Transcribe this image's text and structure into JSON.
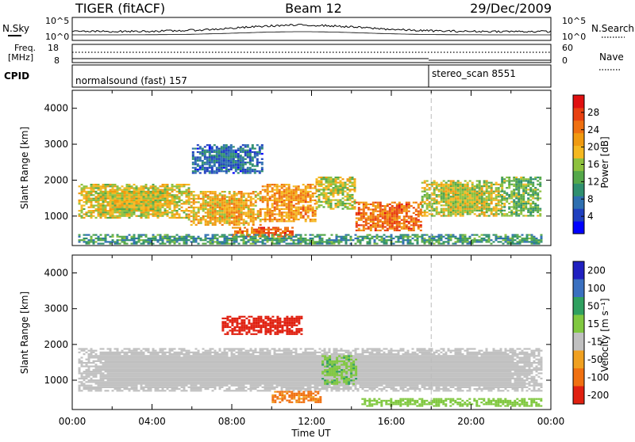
{
  "header": {
    "title_left": "TIGER (fitACF)",
    "title_center": "Beam 12",
    "title_right": "29/Dec/2009"
  },
  "status_panel": {
    "nsky_label": "N.Sky",
    "nsearch_label": "N.Search",
    "noise_left_top": "10^5",
    "noise_left_bottom": "10^0",
    "noise_right_top": "10^5",
    "noise_right_bottom": "10^0",
    "freq_label_line1": "Freq.",
    "freq_label_line2": "[MHz]",
    "freq_top": "18",
    "freq_bottom": "8",
    "nave_label": "Nave",
    "nave_top": "60",
    "nave_bottom": "0",
    "cpid_label": "CPID",
    "cpid_program_1": "normalsound (fast) 157",
    "cpid_program_2": "stereo_scan 8551"
  },
  "chart_data": [
    {
      "type": "heatmap",
      "name": "power",
      "xlabel": "",
      "ylabel": "Slant Range [km]",
      "xlim": [
        0,
        24
      ],
      "ylim": [
        180,
        4500
      ],
      "yticks": [
        1000,
        2000,
        3000,
        4000
      ],
      "colorbar": {
        "label": "Power [dB]",
        "min": 0,
        "max": 32,
        "ticks": [
          4,
          8,
          12,
          16,
          20,
          24,
          28
        ],
        "colors": [
          "#0000ff",
          "#1f3fbf",
          "#2e6fb0",
          "#2f8f6f",
          "#55a84a",
          "#8ec13e",
          "#f5b820",
          "#f09a10",
          "#ef7010",
          "#e84010",
          "#e01010"
        ]
      },
      "echo_regions": [
        {
          "t0": 0.3,
          "t1": 5.8,
          "r0": 950,
          "r1": 1900,
          "level": 18
        },
        {
          "t0": 5.8,
          "t1": 9.5,
          "r0": 750,
          "r1": 1700,
          "level": 20
        },
        {
          "t0": 9.5,
          "t1": 12.2,
          "r0": 850,
          "r1": 1900,
          "level": 22
        },
        {
          "t0": 12.2,
          "t1": 14.2,
          "r0": 1200,
          "r1": 2100,
          "level": 17
        },
        {
          "t0": 14.2,
          "t1": 17.5,
          "r0": 600,
          "r1": 1400,
          "level": 25
        },
        {
          "t0": 17.5,
          "t1": 21.5,
          "r0": 1000,
          "r1": 2000,
          "level": 17
        },
        {
          "t0": 21.5,
          "t1": 23.5,
          "r0": 1000,
          "r1": 2100,
          "level": 14
        },
        {
          "t0": 6.0,
          "t1": 9.5,
          "r0": 2200,
          "r1": 3000,
          "level": 7
        },
        {
          "t0": 8.0,
          "t1": 11.0,
          "r0": 450,
          "r1": 700,
          "level": 25
        },
        {
          "t0": 0.3,
          "t1": 23.5,
          "r0": 250,
          "r1": 500,
          "level": 11
        }
      ]
    },
    {
      "type": "heatmap",
      "name": "velocity",
      "xlabel": "Time UT",
      "ylabel": "Slant Range [km]",
      "xlim": [
        0,
        24
      ],
      "ylim": [
        180,
        4500
      ],
      "xticks": [
        "00:00",
        "04:00",
        "08:00",
        "12:00",
        "16:00",
        "20:00",
        "00:00"
      ],
      "yticks": [
        1000,
        2000,
        3000,
        4000
      ],
      "colorbar": {
        "label": "Velocity [m s⁻¹]",
        "min": -250,
        "max": 250,
        "tick_labels": [
          "200",
          "100",
          "50",
          "15",
          "-15",
          "-50",
          "-100",
          "-200"
        ],
        "colors": [
          "#2020c0",
          "#3a70c0",
          "#30a060",
          "#80c840",
          "#c0c0c0",
          "#f0a020",
          "#f07010",
          "#e02010"
        ]
      },
      "echo_regions": [
        {
          "t0": 0.3,
          "t1": 23.5,
          "r0": 700,
          "r1": 1900,
          "level": 0
        },
        {
          "t0": 10.0,
          "t1": 12.5,
          "r0": 400,
          "r1": 700,
          "level": -60
        },
        {
          "t0": 12.5,
          "t1": 14.2,
          "r0": 900,
          "r1": 1700,
          "level": 40
        },
        {
          "t0": 14.5,
          "t1": 23.5,
          "r0": 300,
          "r1": 500,
          "level": 30
        },
        {
          "t0": 7.5,
          "t1": 11.5,
          "r0": 2300,
          "r1": 2800,
          "level": -150
        }
      ]
    }
  ]
}
